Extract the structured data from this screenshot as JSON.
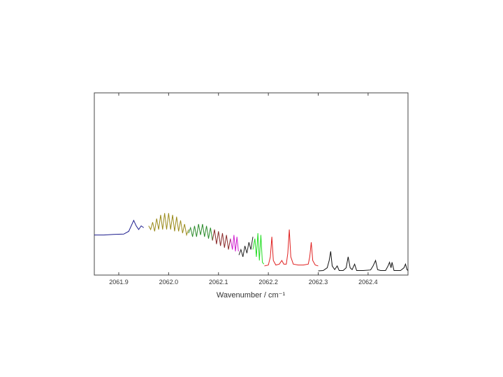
{
  "chart_data": {
    "type": "line",
    "x_label": "Wavenumber / cm⁻¹",
    "xlim": [
      2061.851,
      2062.48
    ],
    "ylim": [
      0,
      100
    ],
    "xticks": [
      2061.9,
      {
        "value": 2062,
        "label": "2062.0"
      },
      2062.1,
      2062.2,
      2062.3,
      2062.4
    ],
    "series": [
      {
        "color": "#1a1a8c",
        "x": [
          2061.851,
          2061.87,
          2061.89,
          2061.91,
          2061.92,
          2061.925,
          2061.93,
          2061.935,
          2061.94,
          2061.945,
          2061.95
        ],
        "values": [
          22,
          22,
          22.3,
          22.5,
          24,
          27,
          30,
          27,
          25,
          27,
          26
        ]
      },
      {
        "color": "#9a8a1a",
        "x": [
          2061.96,
          2061.964,
          2061.968,
          2061.972,
          2061.976,
          2061.98,
          2061.984,
          2061.988,
          2061.992,
          2061.996,
          2062.0,
          2062.004,
          2062.008,
          2062.012,
          2062.016,
          2062.02,
          2062.024,
          2062.028,
          2062.032,
          2062.036,
          2062.04
        ],
        "values": [
          27,
          25,
          29,
          24,
          31,
          25,
          33,
          25,
          34,
          25,
          34,
          25,
          33,
          24,
          32,
          24,
          30,
          23,
          28,
          22,
          25
        ]
      },
      {
        "color": "#2a8a2a",
        "x": [
          2062.04,
          2062.044,
          2062.048,
          2062.052,
          2062.056,
          2062.06,
          2062.064,
          2062.068,
          2062.072,
          2062.076,
          2062.08,
          2062.084,
          2062.088
        ],
        "values": [
          23,
          26,
          21,
          27,
          21,
          28,
          22,
          28,
          21,
          27,
          20,
          26,
          19
        ]
      },
      {
        "color": "#8a2a2a",
        "x": [
          2062.088,
          2062.092,
          2062.096,
          2062.1,
          2062.104,
          2062.108,
          2062.112,
          2062.116,
          2062.12,
          2062.124
        ],
        "values": [
          19,
          25,
          17,
          24,
          16,
          23,
          15,
          22,
          14,
          20
        ]
      },
      {
        "color": "#d020d0",
        "x": [
          2062.124,
          2062.128,
          2062.131,
          2062.134,
          2062.137,
          2062.14
        ],
        "values": [
          20,
          14,
          22,
          13,
          21,
          13
        ]
      },
      {
        "color": "#222222",
        "x": [
          2062.141,
          2062.145,
          2062.149,
          2062.153,
          2062.157,
          2062.161,
          2062.165,
          2062.169
        ],
        "values": [
          11,
          14,
          10,
          16,
          12,
          18,
          14,
          21
        ]
      },
      {
        "color": "#22dd22",
        "x": [
          2062.169,
          2062.173,
          2062.176,
          2062.179,
          2062.182,
          2062.185,
          2062.188,
          2062.191
        ],
        "values": [
          14,
          20,
          10,
          23,
          8,
          22,
          7,
          6
        ]
      },
      {
        "color": "#e02020",
        "x": [
          2062.192,
          2062.2,
          2062.204,
          2062.207,
          2062.21,
          2062.215,
          2062.222,
          2062.227,
          2062.231,
          2062.236,
          2062.239,
          2062.242,
          2062.245,
          2062.25,
          2062.26,
          2062.27,
          2062.28,
          2062.283,
          2062.286,
          2062.289,
          2062.294,
          2062.3
        ],
        "values": [
          5,
          5.5,
          10,
          21,
          8,
          5.5,
          6,
          8,
          6,
          6,
          12,
          25,
          10,
          6,
          5.5,
          5.5,
          6,
          10,
          18,
          8,
          5.5,
          5
        ]
      },
      {
        "color": "#111111",
        "x": [
          2062.3,
          2062.31,
          2062.318,
          2062.322,
          2062.325,
          2062.328,
          2062.333,
          2062.338,
          2062.342,
          2062.35,
          2062.356,
          2062.36,
          2062.364,
          2062.368,
          2062.373,
          2062.377,
          2062.39,
          2062.405,
          2062.41,
          2062.415,
          2062.419,
          2062.425,
          2062.435,
          2062.44,
          2062.443,
          2062.446,
          2062.448,
          2062.452,
          2062.465,
          2062.472,
          2062.475,
          2062.478,
          2062.48
        ],
        "values": [
          2.3,
          2.5,
          4,
          8,
          13,
          5,
          3,
          5,
          2.5,
          2.5,
          4,
          10,
          4,
          3,
          6,
          2.5,
          2.5,
          2.8,
          5,
          8,
          3,
          2.5,
          2.5,
          5,
          7,
          4,
          7,
          2.5,
          2.5,
          4,
          6,
          3,
          2.5
        ]
      }
    ]
  }
}
